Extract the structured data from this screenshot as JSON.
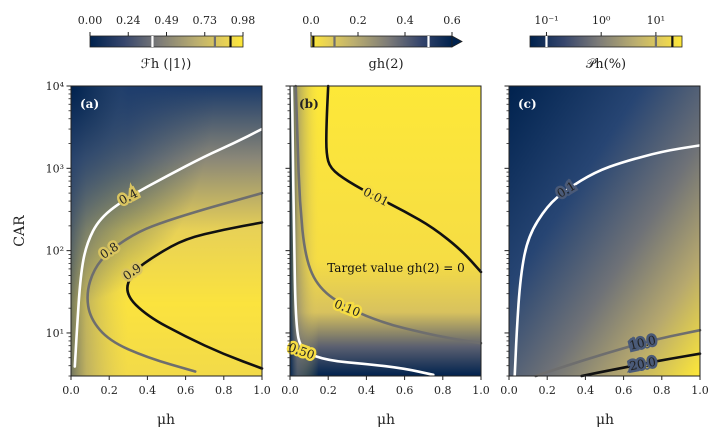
{
  "chart_data": {
    "type": "heatmap",
    "x_axis": {
      "label": "μh",
      "range": [
        0,
        1
      ],
      "ticks": [
        "0.0",
        "0.2",
        "0.4",
        "0.6",
        "0.8",
        "1.0"
      ]
    },
    "y_axis": {
      "label": "CAR",
      "scale": "log",
      "range": [
        3,
        10000
      ],
      "ticks": [
        "10¹",
        "10²",
        "10³",
        "10⁴"
      ]
    },
    "colormap": "cividis",
    "panels": [
      {
        "tag": "(a)",
        "colorbar": {
          "label": "ℱh (|1⟩)",
          "ticks": [
            "0.00",
            "0.24",
            "0.49",
            "0.73",
            "0.98"
          ],
          "range": [
            0.0,
            0.98
          ],
          "markers": [
            0.4,
            0.8,
            0.9
          ]
        },
        "contours": [
          {
            "label": "0.4",
            "color": "#ffffff",
            "points": [
              [
                0.02,
                3.9
              ],
              [
                0.03,
                10
              ],
              [
                0.05,
                50
              ],
              [
                0.08,
                120
              ],
              [
                0.15,
                250
              ],
              [
                0.3,
                450
              ],
              [
                0.5,
                800
              ],
              [
                0.7,
                1400
              ],
              [
                0.85,
                2000
              ],
              [
                1.0,
                3000
              ]
            ]
          },
          {
            "label": "0.8",
            "color": "#6e6e6e",
            "points": [
              [
                0.65,
                3.4
              ],
              [
                0.4,
                5
              ],
              [
                0.2,
                8
              ],
              [
                0.1,
                15
              ],
              [
                0.08,
                30
              ],
              [
                0.12,
                60
              ],
              [
                0.2,
                100
              ],
              [
                0.35,
                170
              ],
              [
                0.5,
                230
              ],
              [
                0.7,
                320
              ],
              [
                0.85,
                400
              ],
              [
                1.0,
                500
              ]
            ]
          },
          {
            "label": "0.9",
            "color": "#111111",
            "points": [
              [
                1.0,
                3.7
              ],
              [
                0.8,
                5.5
              ],
              [
                0.6,
                9
              ],
              [
                0.4,
                16
              ],
              [
                0.28,
                30
              ],
              [
                0.32,
                55
              ],
              [
                0.45,
                90
              ],
              [
                0.6,
                140
              ],
              [
                0.8,
                180
              ],
              [
                1.0,
                220
              ]
            ]
          }
        ]
      },
      {
        "tag": "(b)",
        "colorbar": {
          "label": "gh(2)",
          "ticks": [
            "0.0",
            "0.2",
            "0.4",
            "0.6"
          ],
          "range": [
            0.0,
            0.6
          ],
          "markers": [
            0.01,
            0.1,
            0.5
          ]
        },
        "annotation": "Target value gh(2) = 0",
        "contours": [
          {
            "label": "0.01",
            "color": "#111111",
            "points": [
              [
                0.2,
                10000
              ],
              [
                0.19,
                3000
              ],
              [
                0.19,
                1500
              ],
              [
                0.21,
                1000
              ],
              [
                0.3,
                700
              ],
              [
                0.45,
                450
              ],
              [
                0.6,
                300
              ],
              [
                0.75,
                190
              ],
              [
                0.9,
                100
              ],
              [
                1.0,
                55
              ]
            ]
          },
          {
            "label": "0.10",
            "color": "#6e6e6e",
            "points": [
              [
                0.03,
                10000
              ],
              [
                0.04,
                2000
              ],
              [
                0.05,
                400
              ],
              [
                0.08,
                80
              ],
              [
                0.15,
                35
              ],
              [
                0.3,
                20
              ],
              [
                0.5,
                13
              ],
              [
                0.7,
                10
              ],
              [
                0.85,
                8.5
              ],
              [
                1.0,
                7.5
              ]
            ]
          },
          {
            "label": "0.50",
            "color": "#ffffff",
            "points": [
              [
                0.01,
                10000
              ],
              [
                0.015,
                2000
              ],
              [
                0.02,
                200
              ],
              [
                0.03,
                12
              ],
              [
                0.06,
                6
              ],
              [
                0.2,
                4.6
              ],
              [
                0.4,
                4.2
              ],
              [
                0.6,
                3.7
              ],
              [
                0.75,
                3.1
              ]
            ]
          }
        ]
      },
      {
        "tag": "(c)",
        "colorbar": {
          "label": "𝒫h(%)",
          "scale": "log",
          "ticks": [
            "10⁻¹",
            "10⁰",
            "10¹"
          ],
          "range": [
            0.05,
            30
          ],
          "markers": [
            0.1,
            10,
            20
          ]
        },
        "contours": [
          {
            "label": "0.1",
            "color": "#ffffff",
            "points": [
              [
                0.03,
                3
              ],
              [
                0.04,
                10
              ],
              [
                0.06,
                50
              ],
              [
                0.1,
                150
              ],
              [
                0.2,
                350
              ],
              [
                0.3,
                550
              ],
              [
                0.45,
                900
              ],
              [
                0.6,
                1200
              ],
              [
                0.8,
                1600
              ],
              [
                1.0,
                1900
              ]
            ]
          },
          {
            "label": "10.0",
            "color": "#6e6e6e",
            "points": [
              [
                0.14,
                3.0
              ],
              [
                0.3,
                4.0
              ],
              [
                0.5,
                5.6
              ],
              [
                0.7,
                7.6
              ],
              [
                0.85,
                9.2
              ],
              [
                1.0,
                10.8
              ]
            ]
          },
          {
            "label": "20.0",
            "color": "#111111",
            "points": [
              [
                0.38,
                3.0
              ],
              [
                0.55,
                3.6
              ],
              [
                0.7,
                4.2
              ],
              [
                0.85,
                4.9
              ],
              [
                1.0,
                5.6
              ]
            ]
          }
        ]
      }
    ]
  }
}
